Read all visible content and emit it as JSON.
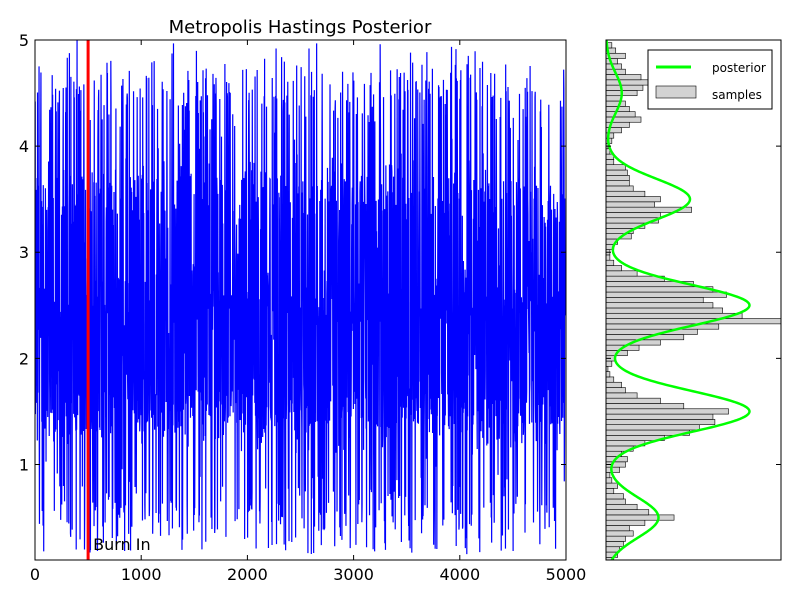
{
  "chart_data": [
    {
      "type": "line",
      "title": "Metropolis Hastings Posterior",
      "xlabel": "",
      "ylabel": "",
      "xlim": [
        0,
        5000
      ],
      "ylim": [
        0.1,
        5
      ],
      "x_ticks": [
        0,
        1000,
        2000,
        3000,
        4000,
        5000
      ],
      "y_ticks": [
        1,
        2,
        3,
        4,
        5
      ],
      "grid": false,
      "series": [
        {
          "color": "#0000ff",
          "n_samples": 5000,
          "modes": [
            0.5,
            1.5,
            2.5,
            3.5,
            4.5
          ],
          "mode_weights": [
            0.11,
            0.27,
            0.32,
            0.19,
            0.11
          ],
          "mode_sd": 0.14
        }
      ],
      "annotations": [
        {
          "text": "Burn In",
          "x": 500,
          "y": 0.25,
          "color": "#ff0000"
        }
      ]
    },
    {
      "type": "bar",
      "orientation": "horizontal",
      "title": "",
      "ylim": [
        0.1,
        5
      ],
      "grid": false,
      "legend": {
        "placement": "top-right"
      },
      "series": [
        {
          "name": "posterior",
          "kind": "line",
          "color": "#00ff00",
          "modes": [
            0.5,
            1.5,
            2.5,
            3.5,
            4.5
          ],
          "peak_values": [
            0.3,
            0.82,
            0.82,
            0.48,
            0.09
          ]
        },
        {
          "name": "samples",
          "kind": "hist",
          "color": "#d3d3d3",
          "bin_centers": [
            0.1,
            0.15,
            0.2,
            0.25,
            0.3,
            0.35,
            0.4,
            0.45,
            0.5,
            0.55,
            0.6,
            0.65,
            0.7,
            0.75,
            0.8,
            0.85,
            0.9,
            0.95,
            1.0,
            1.05,
            1.1,
            1.15,
            1.2,
            1.25,
            1.3,
            1.35,
            1.4,
            1.45,
            1.5,
            1.55,
            1.6,
            1.65,
            1.7,
            1.75,
            1.8,
            1.85,
            1.9,
            1.95,
            2.0,
            2.05,
            2.1,
            2.15,
            2.2,
            2.25,
            2.3,
            2.35,
            2.4,
            2.45,
            2.5,
            2.55,
            2.6,
            2.65,
            2.7,
            2.75,
            2.8,
            2.85,
            2.9,
            2.95,
            3.0,
            3.05,
            3.1,
            3.15,
            3.2,
            3.25,
            3.3,
            3.35,
            3.4,
            3.45,
            3.5,
            3.55,
            3.6,
            3.65,
            3.7,
            3.75,
            3.8,
            3.85,
            3.9,
            3.95,
            4.0,
            4.05,
            4.1,
            4.15,
            4.2,
            4.25,
            4.3,
            4.35,
            4.4,
            4.45,
            4.5,
            4.55,
            4.6,
            4.65,
            4.7,
            4.75,
            4.8,
            4.85,
            4.9,
            4.95
          ],
          "counts": [
            4,
            6,
            7,
            9,
            10,
            14,
            12,
            20,
            35,
            22,
            16,
            10,
            9,
            4,
            6,
            3,
            2,
            7,
            10,
            11,
            8,
            14,
            20,
            30,
            43,
            48,
            56,
            55,
            63,
            40,
            28,
            16,
            10,
            8,
            4,
            2,
            1,
            3,
            5,
            11,
            17,
            28,
            40,
            47,
            58,
            90,
            70,
            60,
            55,
            50,
            62,
            55,
            45,
            30,
            16,
            8,
            4,
            2,
            2,
            4,
            6,
            13,
            14,
            20,
            27,
            28,
            44,
            25,
            28,
            20,
            14,
            12,
            12,
            11,
            10,
            4,
            4,
            2,
            1,
            3,
            4,
            8,
            12,
            18,
            15,
            12,
            10,
            8,
            16,
            19,
            24,
            18,
            10,
            8,
            6,
            10,
            5,
            3
          ]
        }
      ]
    }
  ]
}
